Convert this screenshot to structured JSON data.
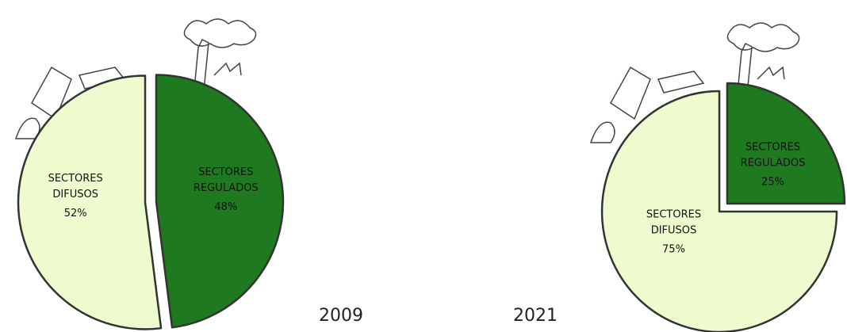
{
  "chart_data": [
    {
      "type": "pie",
      "title": "2009",
      "categories": [
        "SECTORES DIFUSOS",
        "SECTORES REGULADOS"
      ],
      "values": [
        52,
        48
      ],
      "value_labels": [
        "52%",
        "48%"
      ],
      "colors": [
        "#eefbcf",
        "#1f7a1f"
      ]
    },
    {
      "type": "pie",
      "title": "2021",
      "categories": [
        "SECTORES DIFUSOS",
        "SECTORES REGULADOS"
      ],
      "values": [
        75,
        25
      ],
      "value_labels": [
        "75%",
        "25%"
      ],
      "colors": [
        "#eefbcf",
        "#1f7a1f"
      ]
    }
  ]
}
